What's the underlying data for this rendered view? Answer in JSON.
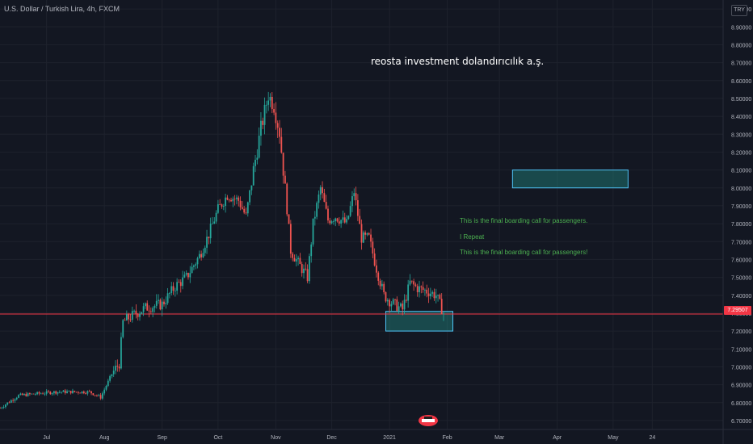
{
  "header": {
    "symbol_title": "U.S. Dollar / Turkish Lira, 4h, FXCM",
    "currency": "TRY"
  },
  "annotations": {
    "headline": "reosta investment dolandırıcılık a.ş.",
    "note_1": "This is the final boarding call for passengers.",
    "note_2": "I Repeat",
    "note_3": "This is the final boarding call for passengers!"
  },
  "current_price": {
    "label": "7.29507",
    "value": 7.29507,
    "color": "#f23645"
  },
  "colors": {
    "background": "#131722",
    "up": "#26a69a",
    "down": "#ef5350",
    "note": "#4caf50",
    "zone": "#1e88e5"
  },
  "chart_data": {
    "type": "candlestick",
    "title": "U.S. Dollar / Turkish Lira, 4h, FXCM",
    "ylim": [
      6.65,
      9.05
    ],
    "y_ticks": [
      6.7,
      6.8,
      6.9,
      7.0,
      7.1,
      7.2,
      7.3,
      7.4,
      7.5,
      7.6,
      7.7,
      7.8,
      7.9,
      8.0,
      8.1,
      8.2,
      8.3,
      8.4,
      8.5,
      8.6,
      8.7,
      8.8,
      8.9,
      9.0
    ],
    "y_tick_labels": [
      "6.70000",
      "6.80000",
      "6.90000",
      "7.00000",
      "7.10000",
      "7.20000",
      "7.30000",
      "7.40000",
      "7.50000",
      "7.60000",
      "7.70000",
      "7.80000",
      "7.90000",
      "8.00000",
      "8.10000",
      "8.20000",
      "8.30000",
      "8.40000",
      "8.50000",
      "8.60000",
      "8.70000",
      "8.80000",
      "8.90000",
      "9.00000"
    ],
    "x_tick_labels": [
      "Jul",
      "Aug",
      "Sep",
      "Oct",
      "Nov",
      "Dec",
      "2021",
      "Feb",
      "Mar",
      "Apr",
      "May",
      "24"
    ],
    "x_tick_days": [
      15,
      46,
      77,
      107,
      138,
      168,
      199,
      230,
      258,
      289,
      319,
      340
    ],
    "x_range_days": [
      -10,
      378
    ],
    "grid": true,
    "series": [
      {
        "points": [
          [
            -10,
            6.77
          ],
          [
            0,
            6.84
          ],
          [
            10,
            6.85
          ],
          [
            20,
            6.86
          ],
          [
            30,
            6.86
          ],
          [
            38,
            6.86
          ],
          [
            44,
            6.83
          ],
          [
            50,
            6.96
          ],
          [
            54,
            7.02
          ],
          [
            56,
            7.25
          ],
          [
            60,
            7.28
          ],
          [
            68,
            7.33
          ],
          [
            77,
            7.35
          ],
          [
            84,
            7.45
          ],
          [
            90,
            7.5
          ],
          [
            97,
            7.62
          ],
          [
            102,
            7.74
          ],
          [
            107,
            7.88
          ],
          [
            112,
            7.96
          ],
          [
            118,
            7.93
          ],
          [
            122,
            7.84
          ],
          [
            126,
            8.1
          ],
          [
            130,
            8.33
          ],
          [
            134,
            8.52
          ],
          [
            137,
            8.46
          ],
          [
            140,
            8.31
          ],
          [
            143,
            8.0
          ],
          [
            146,
            7.65
          ],
          [
            150,
            7.58
          ],
          [
            155,
            7.5
          ],
          [
            158,
            7.8
          ],
          [
            162,
            8.0
          ],
          [
            166,
            7.82
          ],
          [
            170,
            7.84
          ],
          [
            176,
            7.8
          ],
          [
            180,
            7.98
          ],
          [
            184,
            7.72
          ],
          [
            188,
            7.72
          ],
          [
            192,
            7.55
          ],
          [
            196,
            7.4
          ],
          [
            200,
            7.36
          ],
          [
            206,
            7.32
          ],
          [
            210,
            7.47
          ],
          [
            214,
            7.44
          ],
          [
            220,
            7.42
          ],
          [
            224,
            7.4
          ],
          [
            228,
            7.3
          ]
        ]
      }
    ],
    "price_line": 7.29507,
    "zones": [
      {
        "x_days": [
          197,
          233
        ],
        "y_range": [
          7.2,
          7.31
        ]
      },
      {
        "x_days": [
          265,
          327
        ],
        "y_range": [
          8.0,
          8.1
        ]
      }
    ]
  }
}
